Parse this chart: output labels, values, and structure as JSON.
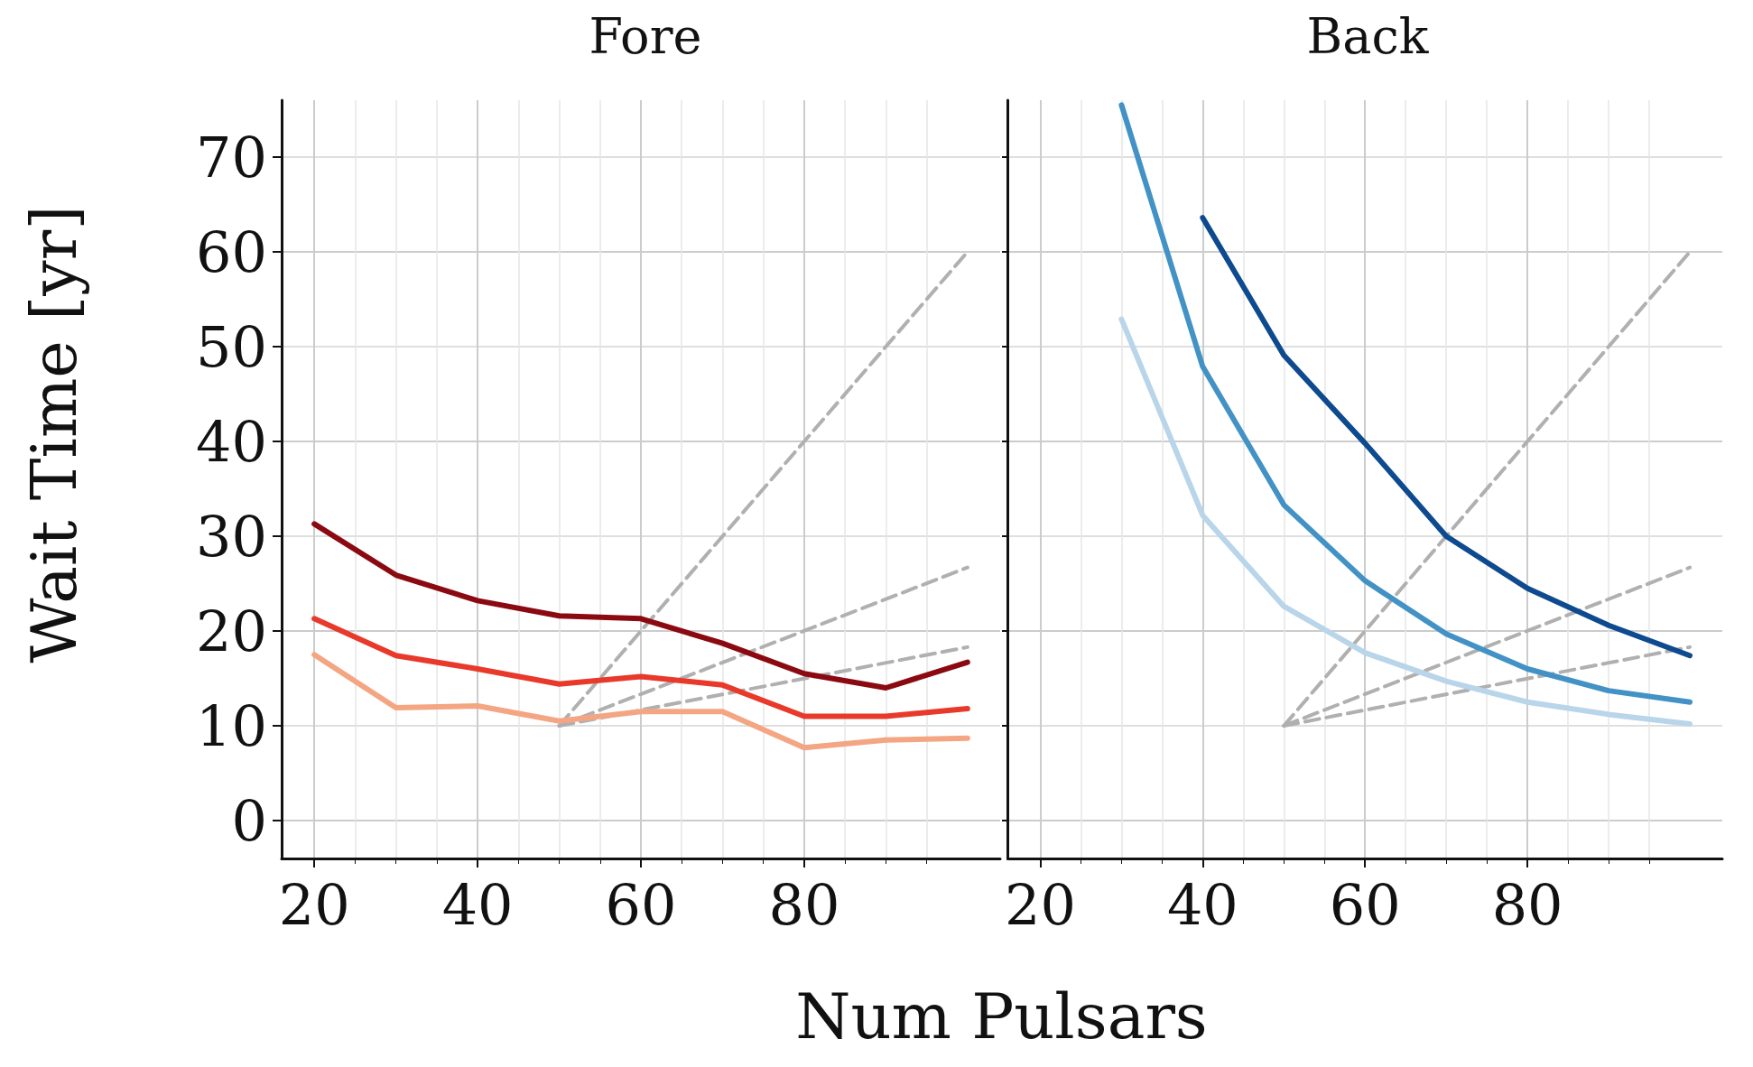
{
  "chart_data": [
    {
      "type": "line",
      "title": "Fore",
      "xlabel": "Num Pulsars",
      "ylabel": "Wait Time [yr]",
      "xlim": [
        16,
        104
      ],
      "xticks": [
        20,
        40,
        60,
        80
      ],
      "ylim": [
        -4,
        76
      ],
      "yticks": [
        0,
        10,
        20,
        30,
        40,
        50,
        60,
        70
      ],
      "grid": true,
      "marker": "none",
      "line_style": "solid",
      "series": [
        {
          "color": "#b0b0b0",
          "line_style": "dashed",
          "x": [
            50,
            100
          ],
          "values": [
            10,
            60
          ]
        },
        {
          "color": "#b0b0b0",
          "line_style": "dashed",
          "x": [
            50,
            100
          ],
          "values": [
            10,
            26.7
          ]
        },
        {
          "color": "#b0b0b0",
          "line_style": "dashed",
          "x": [
            50,
            100
          ],
          "values": [
            10,
            18.3
          ]
        },
        {
          "color": "#8b0a12",
          "x": [
            20,
            30,
            40,
            50,
            60,
            70,
            80,
            90,
            100
          ],
          "values": [
            31.3,
            25.9,
            23.2,
            21.6,
            21.3,
            18.7,
            15.5,
            14.0,
            16.7
          ]
        },
        {
          "color": "#e8392b",
          "x": [
            20,
            30,
            40,
            50,
            60,
            70,
            80,
            90,
            100
          ],
          "values": [
            21.3,
            17.4,
            16.0,
            14.4,
            15.2,
            14.3,
            11.0,
            11.0,
            11.8
          ]
        },
        {
          "color": "#f4a582",
          "x": [
            20,
            30,
            40,
            50,
            60,
            70,
            80,
            90,
            100
          ],
          "values": [
            17.5,
            11.9,
            12.1,
            10.5,
            11.5,
            11.5,
            7.7,
            8.5,
            8.7
          ]
        }
      ]
    },
    {
      "type": "line",
      "title": "Back",
      "xlim": [
        16,
        104
      ],
      "xticks": [
        20,
        40,
        60,
        80
      ],
      "ylim": [
        -4,
        76
      ],
      "yticks": [
        0,
        10,
        20,
        30,
        40,
        50,
        60,
        70
      ],
      "tick_labels": "x",
      "grid": true,
      "marker": "none",
      "line_style": "solid",
      "series": [
        {
          "color": "#b0b0b0",
          "line_style": "dashed",
          "x": [
            50,
            100
          ],
          "values": [
            10,
            60
          ]
        },
        {
          "color": "#b0b0b0",
          "line_style": "dashed",
          "x": [
            50,
            100
          ],
          "values": [
            10,
            26.7
          ]
        },
        {
          "color": "#b0b0b0",
          "line_style": "dashed",
          "x": [
            50,
            100
          ],
          "values": [
            10,
            18.3
          ]
        },
        {
          "color": "#0d4a8f",
          "x": [
            40,
            50,
            60,
            70,
            80,
            90,
            100
          ],
          "values": [
            63.6,
            49.1,
            39.8,
            30.0,
            24.5,
            20.6,
            17.4
          ]
        },
        {
          "color": "#4292c6",
          "x": [
            30,
            40,
            50,
            60,
            70,
            80,
            90,
            100
          ],
          "values": [
            75.5,
            47.9,
            33.3,
            25.3,
            19.7,
            16.0,
            13.7,
            12.5
          ]
        },
        {
          "color": "#b9d5ea",
          "x": [
            30,
            40,
            50,
            60,
            70,
            80,
            90,
            100
          ],
          "values": [
            52.9,
            32.2,
            22.6,
            17.7,
            14.7,
            12.5,
            11.2,
            10.2
          ]
        }
      ]
    }
  ]
}
